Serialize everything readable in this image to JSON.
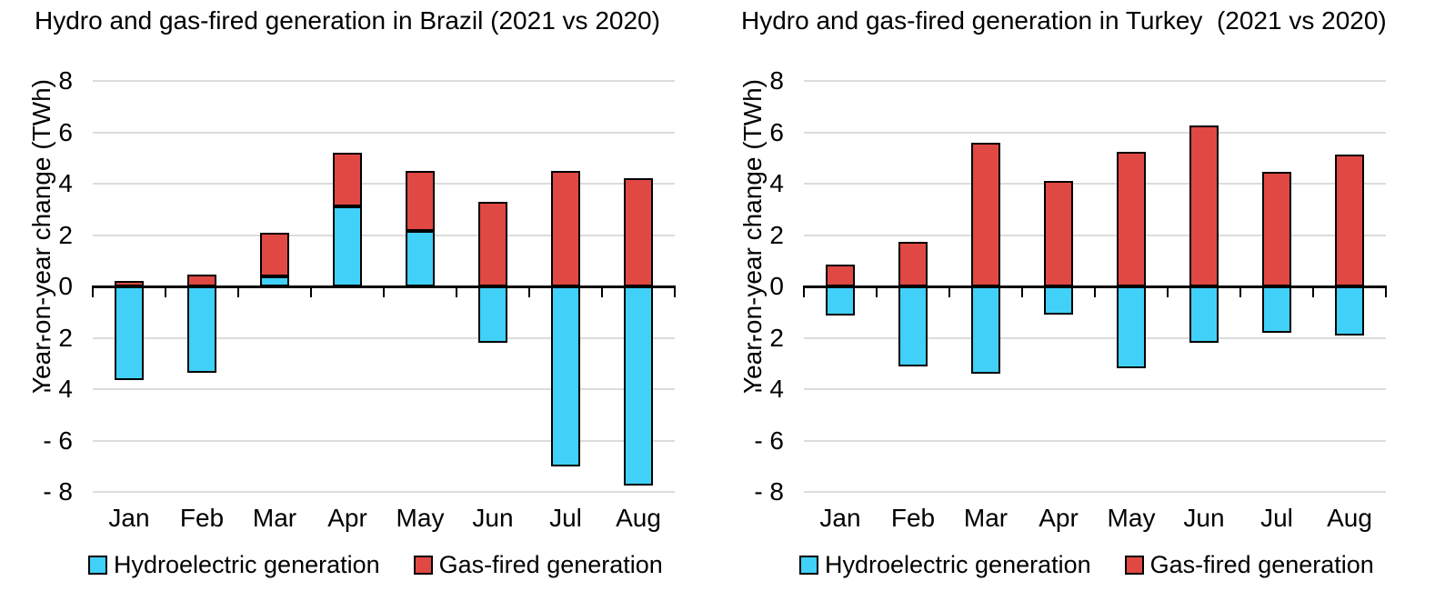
{
  "colors": {
    "hydro": "#41D0F7",
    "gas": "#E04843",
    "grid": "#DCDCDC",
    "axis": "#000000",
    "text": "#000000",
    "background": "#FFFFFF"
  },
  "chart_data": [
    {
      "type": "bar",
      "stacked": true,
      "title": "Hydro and gas-fired generation in Brazil (2021 vs 2020)",
      "ylabel": "Year-on-year change (TWh)",
      "categories": [
        "Jan",
        "Feb",
        "Mar",
        "Apr",
        "May",
        "Jun",
        "Jul",
        "Aug"
      ],
      "series": [
        {
          "name": "Hydroelectric generation",
          "color_key": "hydro",
          "values": [
            -3.65,
            -3.35,
            0.4,
            3.1,
            2.15,
            -2.2,
            -7.0,
            -7.75
          ]
        },
        {
          "name": "Gas-fired generation",
          "color_key": "gas",
          "values": [
            0.2,
            0.45,
            1.7,
            2.1,
            2.35,
            3.3,
            4.5,
            4.2
          ]
        }
      ],
      "ylim": [
        -8,
        8
      ],
      "ytick_step": 2,
      "ytick_labels": [
        "8",
        "6",
        "4",
        "2",
        "0",
        "- 2",
        "- 4",
        "- 6",
        "- 8"
      ],
      "grid": true,
      "legend_position": "bottom"
    },
    {
      "type": "bar",
      "stacked": true,
      "title": "Hydro and gas-fired generation in Turkey  (2021 vs 2020)",
      "ylabel": "Year-on-year change (TWh)",
      "categories": [
        "Jan",
        "Feb",
        "Mar",
        "Apr",
        "May",
        "Jun",
        "Jul",
        "Aug"
      ],
      "series": [
        {
          "name": "Hydroelectric generation",
          "color_key": "hydro",
          "values": [
            -1.15,
            -3.1,
            -3.4,
            -1.1,
            -3.2,
            -2.2,
            -1.8,
            -1.9
          ]
        },
        {
          "name": "Gas-fired generation",
          "color_key": "gas",
          "values": [
            0.85,
            1.75,
            5.6,
            4.1,
            5.25,
            6.25,
            4.45,
            5.15
          ]
        }
      ],
      "ylim": [
        -8,
        8
      ],
      "ytick_step": 2,
      "ytick_labels": [
        "8",
        "6",
        "4",
        "2",
        "0",
        "- 2",
        "- 4",
        "- 6",
        "- 8"
      ],
      "grid": true,
      "legend_position": "bottom"
    }
  ]
}
